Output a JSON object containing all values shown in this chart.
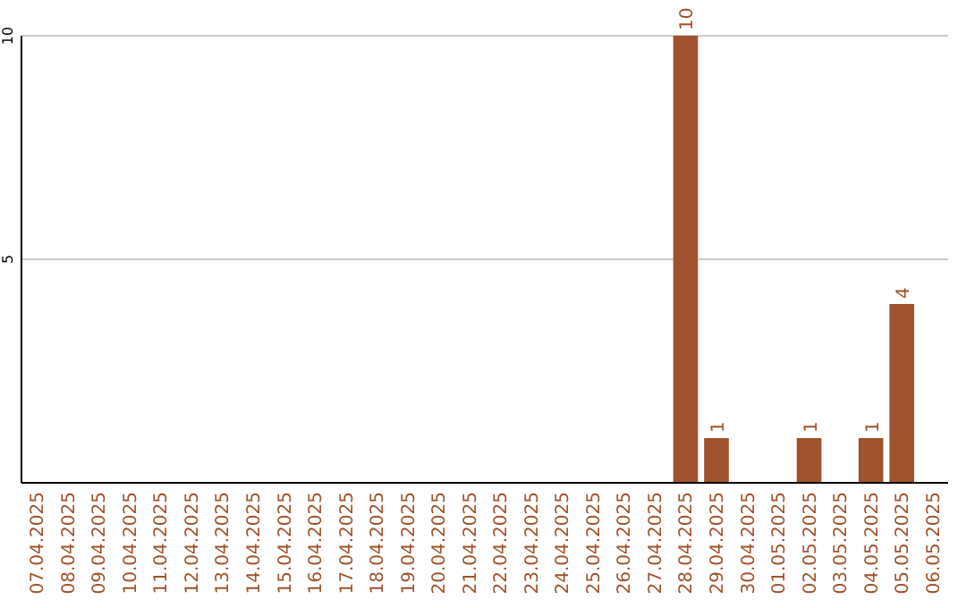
{
  "chart_data": {
    "type": "bar",
    "categories": [
      "07.04.2025",
      "08.04.2025",
      "09.04.2025",
      "10.04.2025",
      "11.04.2025",
      "12.04.2025",
      "13.04.2025",
      "14.04.2025",
      "15.04.2025",
      "16.04.2025",
      "17.04.2025",
      "18.04.2025",
      "19.04.2025",
      "20.04.2025",
      "21.04.2025",
      "22.04.2025",
      "23.04.2025",
      "24.04.2025",
      "25.04.2025",
      "26.04.2025",
      "27.04.2025",
      "28.04.2025",
      "29.04.2025",
      "30.04.2025",
      "01.05.2025",
      "02.05.2025",
      "03.05.2025",
      "04.05.2025",
      "05.05.2025",
      "06.05.2025"
    ],
    "values": [
      0,
      0,
      0,
      0,
      0,
      0,
      0,
      0,
      0,
      0,
      0,
      0,
      0,
      0,
      0,
      0,
      0,
      0,
      0,
      0,
      0,
      10,
      1,
      0,
      0,
      1,
      0,
      1,
      4,
      0
    ],
    "value_labels": [
      null,
      null,
      null,
      null,
      null,
      null,
      null,
      null,
      null,
      null,
      null,
      null,
      null,
      null,
      null,
      null,
      null,
      null,
      null,
      null,
      null,
      "10",
      "1",
      null,
      null,
      "1",
      null,
      "1",
      "4",
      null
    ],
    "color": "#a0522d",
    "ylim": [
      0,
      10
    ],
    "yticks": [
      5,
      10
    ],
    "grid": "y"
  }
}
